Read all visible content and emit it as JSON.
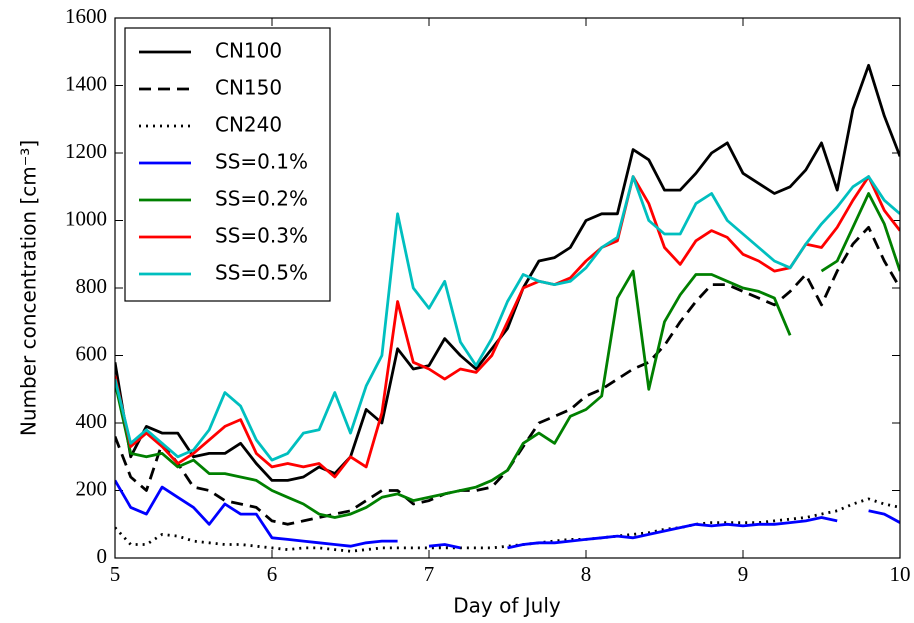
{
  "chart_data": {
    "type": "line",
    "xlabel": "Day of July",
    "ylabel": "Number concentration [cm⁻³]",
    "x": [
      5.0,
      5.1,
      5.2,
      5.3,
      5.4,
      5.5,
      5.6,
      5.7,
      5.8,
      5.9,
      6.0,
      6.1,
      6.2,
      6.3,
      6.4,
      6.5,
      6.6,
      6.7,
      6.8,
      6.9,
      7.0,
      7.1,
      7.2,
      7.3,
      7.4,
      7.5,
      7.6,
      7.7,
      7.8,
      7.9,
      8.0,
      8.1,
      8.2,
      8.3,
      8.4,
      8.5,
      8.6,
      8.7,
      8.8,
      8.9,
      9.0,
      9.1,
      9.2,
      9.3,
      9.4,
      9.5,
      9.6,
      9.7,
      9.8,
      9.9,
      10.0
    ],
    "series": [
      {
        "name": "CN100",
        "color": "#000000",
        "linestyle": "solid",
        "values": [
          580,
          300,
          390,
          370,
          370,
          300,
          310,
          310,
          340,
          280,
          230,
          230,
          240,
          270,
          250,
          300,
          440,
          400,
          620,
          560,
          570,
          650,
          600,
          560,
          620,
          680,
          800,
          880,
          890,
          920,
          1000,
          1020,
          1020,
          1210,
          1180,
          1090,
          1090,
          1140,
          1200,
          1230,
          1140,
          1110,
          1080,
          1100,
          1150,
          1230,
          1090,
          1330,
          1460,
          1310,
          1190
        ]
      },
      {
        "name": "CN150",
        "color": "#000000",
        "linestyle": "dashed",
        "values": [
          360,
          240,
          200,
          340,
          280,
          210,
          200,
          170,
          160,
          150,
          110,
          100,
          110,
          120,
          130,
          140,
          170,
          200,
          200,
          160,
          170,
          190,
          200,
          200,
          210,
          260,
          330,
          400,
          420,
          440,
          480,
          500,
          530,
          560,
          580,
          630,
          700,
          760,
          810,
          810,
          790,
          770,
          750,
          790,
          840,
          750,
          850,
          930,
          980,
          880,
          800
        ]
      },
      {
        "name": "CN240",
        "color": "#000000",
        "linestyle": "dotted",
        "values": [
          90,
          40,
          40,
          70,
          65,
          50,
          45,
          40,
          40,
          35,
          30,
          25,
          30,
          30,
          25,
          20,
          25,
          30,
          30,
          30,
          30,
          30,
          30,
          30,
          30,
          35,
          40,
          45,
          50,
          55,
          55,
          60,
          65,
          70,
          75,
          85,
          90,
          100,
          105,
          105,
          105,
          105,
          110,
          115,
          120,
          130,
          140,
          160,
          175,
          160,
          150
        ]
      },
      {
        "name": "SS=0.1%",
        "color": "#0000ff",
        "linestyle": "solid",
        "values": [
          230,
          150,
          130,
          210,
          180,
          150,
          100,
          160,
          130,
          130,
          60,
          55,
          50,
          45,
          40,
          35,
          45,
          50,
          50,
          null,
          35,
          40,
          30,
          null,
          null,
          30,
          40,
          45,
          45,
          50,
          55,
          60,
          65,
          60,
          70,
          80,
          90,
          100,
          95,
          100,
          95,
          100,
          100,
          105,
          110,
          120,
          110,
          null,
          140,
          130,
          105
        ]
      },
      {
        "name": "SS=0.2%",
        "color": "#008000",
        "linestyle": "solid",
        "values": [
          520,
          310,
          300,
          310,
          270,
          290,
          250,
          250,
          240,
          230,
          200,
          180,
          160,
          130,
          120,
          130,
          150,
          180,
          190,
          170,
          180,
          190,
          200,
          210,
          230,
          260,
          340,
          370,
          340,
          420,
          440,
          480,
          770,
          850,
          500,
          700,
          780,
          840,
          840,
          820,
          800,
          790,
          770,
          660,
          null,
          850,
          880,
          980,
          1080,
          990,
          850
        ]
      },
      {
        "name": "SS=0.3%",
        "color": "#ff0000",
        "linestyle": "solid",
        "values": [
          540,
          330,
          370,
          330,
          280,
          310,
          350,
          390,
          410,
          310,
          270,
          280,
          270,
          280,
          240,
          300,
          270,
          430,
          760,
          580,
          560,
          530,
          560,
          550,
          600,
          700,
          800,
          820,
          810,
          830,
          880,
          920,
          940,
          1130,
          1050,
          920,
          870,
          940,
          970,
          950,
          900,
          880,
          850,
          860,
          930,
          920,
          980,
          1060,
          1130,
          1030,
          970
        ]
      },
      {
        "name": "SS=0.5%",
        "color": "#00bfbf",
        "linestyle": "solid",
        "values": [
          530,
          340,
          380,
          340,
          300,
          320,
          380,
          490,
          450,
          350,
          290,
          310,
          370,
          380,
          490,
          370,
          510,
          600,
          1020,
          800,
          740,
          820,
          640,
          570,
          650,
          760,
          840,
          820,
          810,
          820,
          860,
          920,
          950,
          1130,
          1000,
          960,
          960,
          1050,
          1080,
          1000,
          960,
          920,
          880,
          860,
          930,
          990,
          1040,
          1100,
          1130,
          1060,
          1020
        ]
      }
    ],
    "xlim": [
      5,
      10
    ],
    "xticks": [
      5,
      6,
      7,
      8,
      9,
      10
    ],
    "ylim": [
      0,
      1600
    ],
    "yticks": [
      0,
      200,
      400,
      600,
      800,
      1000,
      1200,
      1400,
      1600
    ],
    "legend": "upper left",
    "grid": false
  }
}
